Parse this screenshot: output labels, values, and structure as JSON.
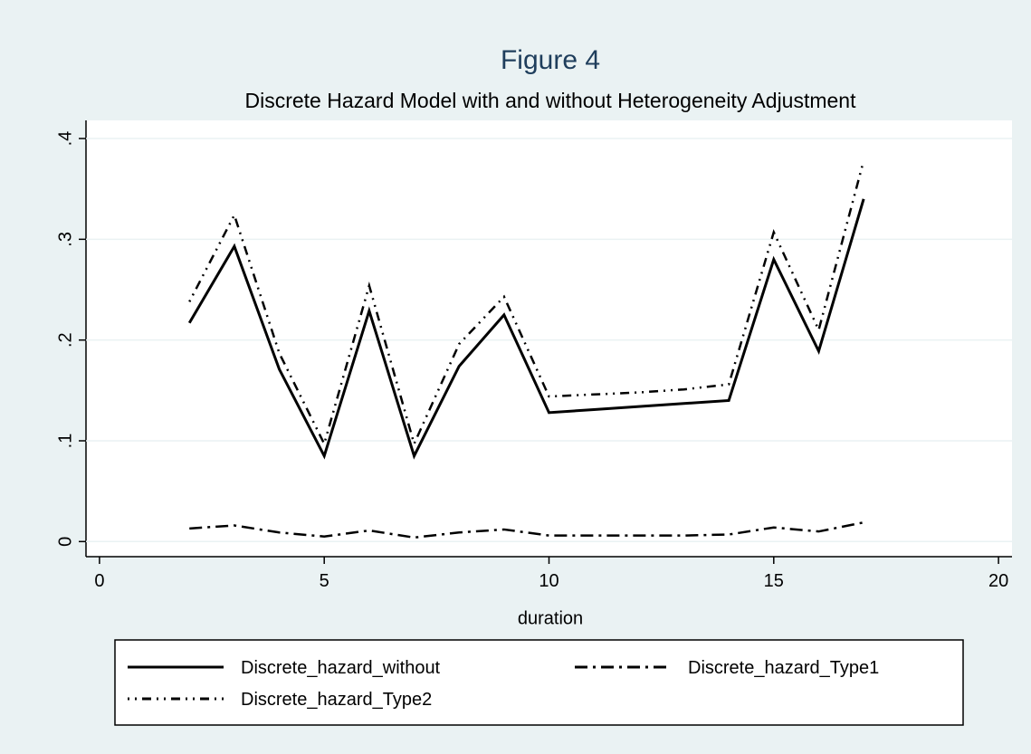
{
  "chart_data": {
    "type": "line",
    "title": "Figure 4",
    "subtitle": "Discrete Hazard Model with and without Heterogeneity Adjustment",
    "x_label": "duration",
    "x": [
      2,
      3,
      4,
      5,
      6,
      7,
      8,
      9,
      10,
      11,
      12,
      13,
      14,
      15,
      16,
      17
    ],
    "series": [
      {
        "name": "Discrete_hazard_without",
        "color": "#000000",
        "style": "solid",
        "values": [
          0.217,
          0.293,
          0.171,
          0.085,
          0.229,
          0.085,
          0.174,
          0.225,
          0.128,
          0.131,
          0.134,
          0.137,
          0.14,
          0.28,
          0.189,
          0.34
        ]
      },
      {
        "name": "Discrete_hazard_Type1",
        "color": "#000000",
        "style": "dash-dot",
        "values": [
          0.013,
          0.016,
          0.009,
          0.005,
          0.011,
          0.004,
          0.009,
          0.012,
          0.006,
          0.006,
          0.006,
          0.006,
          0.007,
          0.014,
          0.01,
          0.019
        ]
      },
      {
        "name": "Discrete_hazard_Type2",
        "color": "#000000",
        "style": "dot-dash",
        "values": [
          0.238,
          0.324,
          0.187,
          0.097,
          0.254,
          0.097,
          0.196,
          0.243,
          0.144,
          0.146,
          0.148,
          0.151,
          0.156,
          0.307,
          0.21,
          0.378
        ]
      }
    ],
    "xlim": [
      -0.3,
      20.3
    ],
    "xticks": [
      0,
      5,
      10,
      15,
      20
    ],
    "ylim": [
      -0.015,
      0.418
    ],
    "yticks": [
      0,
      {
        "value": 0.1,
        "label": ".1"
      },
      {
        "value": 0.2,
        "label": ".2"
      },
      {
        "value": 0.3,
        "label": ".3"
      },
      {
        "value": 0.4,
        "label": ".4"
      }
    ],
    "grid": true
  }
}
